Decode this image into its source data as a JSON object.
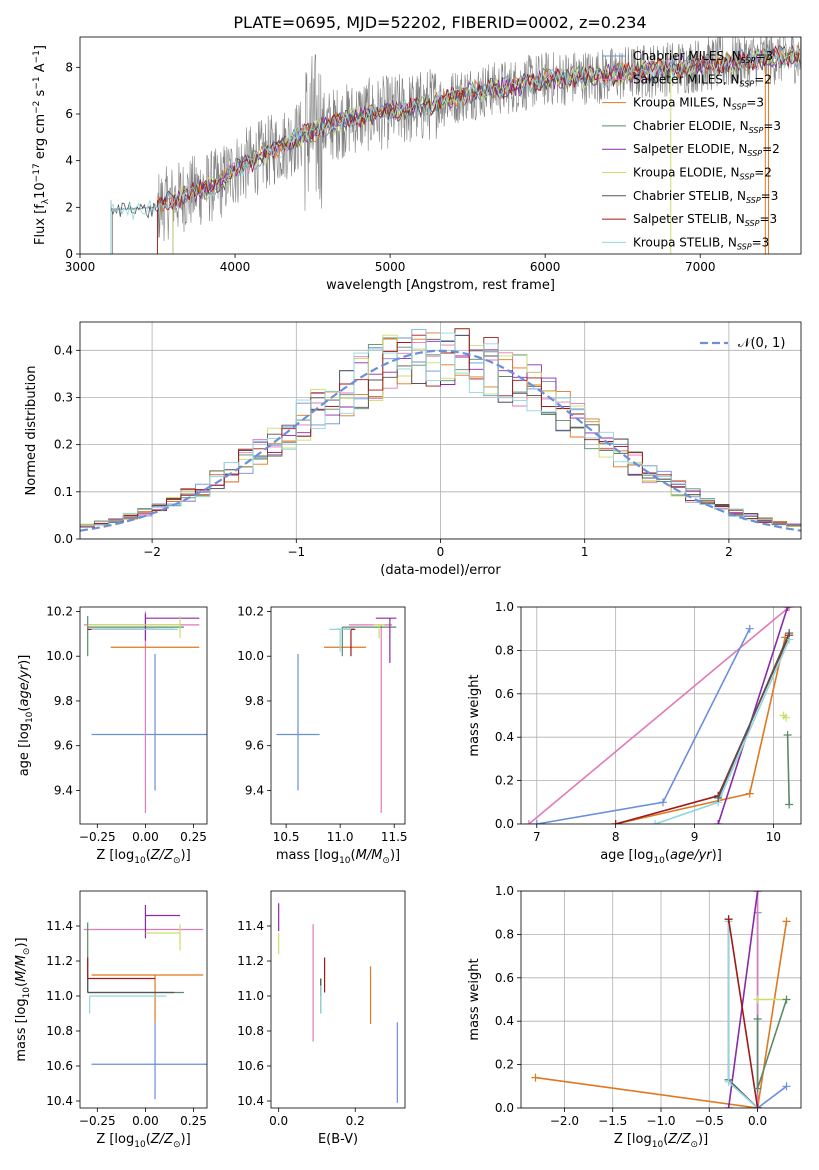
{
  "figure": {
    "suptitle": "PLATE=0695, MJD=52202, FIBERID=0002, z=0.234"
  },
  "colors": {
    "chabrier_miles": "#6b8fdb",
    "salpeter_miles": "#e07ab8",
    "kroupa_miles": "#e0781f",
    "chabrier_elodie": "#5a8a6a",
    "salpeter_elodie": "#8b2aa8",
    "kroupa_elodie": "#c8e06a",
    "chabrier_stelib": "#555555",
    "salpeter_stelib": "#a01818",
    "kroupa_stelib": "#8fd8e0",
    "data": "#808080",
    "normal": "#6b8fdb"
  },
  "chart_data": [
    {
      "id": "spectrum",
      "type": "line",
      "xlabel": "wavelength [Angstrom, rest frame]",
      "ylabel": "Flux [f",
      "xlim": [
        3000,
        7650
      ],
      "ylim": [
        0,
        9.3
      ],
      "xticks": [
        3000,
        4000,
        5000,
        6000,
        7000
      ],
      "yticks": [
        0,
        2,
        4,
        6,
        8
      ],
      "legend_position": "upper-right",
      "continuum": [
        [
          3200,
          1.9
        ],
        [
          3500,
          2.0
        ],
        [
          3700,
          2.6
        ],
        [
          3900,
          3.0
        ],
        [
          4000,
          3.6
        ],
        [
          4200,
          4.3
        ],
        [
          4400,
          5.0
        ],
        [
          4600,
          5.5
        ],
        [
          4800,
          5.9
        ],
        [
          5000,
          6.1
        ],
        [
          5200,
          6.3
        ],
        [
          5500,
          6.9
        ],
        [
          5800,
          7.2
        ],
        [
          6000,
          7.5
        ],
        [
          6300,
          7.6
        ],
        [
          6600,
          7.8
        ],
        [
          7000,
          8.1
        ],
        [
          7300,
          8.3
        ],
        [
          7600,
          8.5
        ]
      ],
      "series": [
        {
          "name": "Chabrier MILES, N",
          "sub": "SSP",
          "suffix": "=3",
          "color_key": "chabrier_miles"
        },
        {
          "name": "Salpeter MILES, N",
          "sub": "SSP",
          "suffix": "=2",
          "color_key": "salpeter_miles"
        },
        {
          "name": "Kroupa MILES, N",
          "sub": "SSP",
          "suffix": "=3",
          "color_key": "kroupa_miles"
        },
        {
          "name": "Chabrier ELODIE, N",
          "sub": "SSP",
          "suffix": "=3",
          "color_key": "chabrier_elodie"
        },
        {
          "name": "Salpeter ELODIE, N",
          "sub": "SSP",
          "suffix": "=2",
          "color_key": "salpeter_elodie"
        },
        {
          "name": "Kroupa ELODIE, N",
          "sub": "SSP",
          "suffix": "=2",
          "color_key": "kroupa_elodie"
        },
        {
          "name": "Chabrier STELIB, N",
          "sub": "SSP",
          "suffix": "=3",
          "color_key": "chabrier_stelib"
        },
        {
          "name": "Salpeter STELIB, N",
          "sub": "SSP",
          "suffix": "=3",
          "color_key": "salpeter_stelib"
        },
        {
          "name": "Kroupa STELIB, N",
          "sub": "SSP",
          "suffix": "=3",
          "color_key": "kroupa_stelib"
        }
      ]
    },
    {
      "id": "residuals",
      "type": "line",
      "xlabel": "(data-model)/error",
      "ylabel": "Normed distribution",
      "xlim": [
        -2.5,
        2.5
      ],
      "ylim": [
        0,
        0.46
      ],
      "xticks": [
        -2,
        -1,
        0,
        1,
        2
      ],
      "yticks": [
        0.0,
        0.1,
        0.2,
        0.3,
        0.4
      ],
      "grid": true,
      "legend": {
        "label": "𝒩(0, 1)",
        "position": "upper-right"
      },
      "bin_width": 0.1
    },
    {
      "id": "age_vs_Z",
      "type": "scatter",
      "xlabel": "Z [log",
      "ylabel": "age  [log",
      "xlim": [
        -0.34,
        0.32
      ],
      "ylim": [
        9.25,
        10.22
      ],
      "xticks": [
        -0.25,
        0.0,
        0.25
      ],
      "yticks": [
        9.4,
        9.6,
        9.8,
        10.0,
        10.2
      ],
      "points": [
        {
          "color_key": "chabrier_miles",
          "x": 0.05,
          "xerr": [
            0.33,
            0.27
          ],
          "y": 9.65,
          "yerr": [
            0.25,
            0.36
          ]
        },
        {
          "color_key": "salpeter_miles",
          "x": 0.0,
          "xerr": [
            0.32,
            0.28
          ],
          "y": 10.14,
          "yerr": [
            0.84,
            0.06
          ]
        },
        {
          "color_key": "kroupa_miles",
          "x": 0.05,
          "xerr": [
            0.23,
            0.23
          ],
          "y": 10.04,
          "yerr": [
            0.0,
            0.0
          ]
        },
        {
          "color_key": "chabrier_elodie",
          "x": -0.3,
          "xerr": [
            0.0,
            0.5
          ],
          "y": 10.13,
          "yerr": [
            0.13,
            0.05
          ]
        },
        {
          "color_key": "salpeter_elodie",
          "x": 0.0,
          "xerr": [
            0.0,
            0.28
          ],
          "y": 10.17,
          "yerr": [
            0.1,
            0.02
          ]
        },
        {
          "color_key": "kroupa_elodie",
          "x": 0.18,
          "xerr": [
            0.48,
            0.0
          ],
          "y": 10.14,
          "yerr": [
            0.06,
            0.04
          ]
        },
        {
          "color_key": "chabrier_stelib",
          "x": -0.05,
          "xerr": [
            0.23,
            0.2
          ],
          "y": 10.12,
          "yerr": [
            0.0,
            0.0
          ]
        },
        {
          "color_key": "salpeter_stelib",
          "x": -0.3,
          "xerr": [
            0.0,
            0.35
          ],
          "y": 10.12,
          "yerr": [
            0.0,
            0.0
          ]
        },
        {
          "color_key": "kroupa_stelib",
          "x": -0.28,
          "xerr": [
            0.0,
            0.45
          ],
          "y": 10.12,
          "yerr": [
            0.0,
            0.0
          ]
        }
      ]
    },
    {
      "id": "age_vs_mass",
      "type": "scatter",
      "xlabel": "mass [log",
      "ylabel": "",
      "xlim": [
        10.36,
        11.6
      ],
      "ylim": [
        9.25,
        10.22
      ],
      "xticks": [
        10.5,
        11.0,
        11.5
      ],
      "yticks": [
        9.4,
        9.6,
        9.8,
        10.0,
        10.2
      ],
      "points": [
        {
          "color_key": "chabrier_miles",
          "x": 10.61,
          "xerr": [
            0.2,
            0.2
          ],
          "y": 9.65,
          "yerr": [
            0.25,
            0.36
          ]
        },
        {
          "color_key": "salpeter_miles",
          "x": 11.38,
          "xerr": [
            0.3,
            0.1
          ],
          "y": 10.14,
          "yerr": [
            0.84,
            0.0
          ]
        },
        {
          "color_key": "kroupa_miles",
          "x": 11.12,
          "xerr": [
            0.27,
            0.12
          ],
          "y": 10.04,
          "yerr": [
            0.0,
            0.0
          ]
        },
        {
          "color_key": "chabrier_elodie",
          "x": 11.02,
          "xerr": [
            0.0,
            0.5
          ],
          "y": 10.13,
          "yerr": [
            0.13,
            0.0
          ]
        },
        {
          "color_key": "salpeter_elodie",
          "x": 11.46,
          "xerr": [
            0.13,
            0.06
          ],
          "y": 10.17,
          "yerr": [
            0.2,
            0.0
          ]
        },
        {
          "color_key": "kroupa_elodie",
          "x": 11.36,
          "xerr": [
            0.05,
            0.05
          ],
          "y": 10.14,
          "yerr": [
            0.06,
            0.0
          ]
        },
        {
          "color_key": "chabrier_stelib",
          "x": 11.05,
          "xerr": [
            0.08,
            0.08
          ],
          "y": 10.12,
          "yerr": [
            0.0,
            0.0
          ]
        },
        {
          "color_key": "salpeter_stelib",
          "x": 11.1,
          "xerr": [
            0.07,
            0.04
          ],
          "y": 10.12,
          "yerr": [
            0.12,
            0.0
          ]
        },
        {
          "color_key": "kroupa_stelib",
          "x": 11.0,
          "xerr": [
            0.1,
            0.1
          ],
          "y": 10.12,
          "yerr": [
            0.1,
            0.0
          ]
        }
      ]
    },
    {
      "id": "weight_vs_age",
      "type": "line",
      "xlabel": "age  [log",
      "ylabel": "mass weight",
      "xlim": [
        6.8,
        10.35
      ],
      "ylim": [
        0,
        1.0
      ],
      "xticks": [
        7,
        8,
        9,
        10
      ],
      "yticks": [
        0.0,
        0.2,
        0.4,
        0.6,
        0.8,
        1.0
      ],
      "grid": true,
      "series": [
        {
          "color_key": "salpeter_miles",
          "x": [
            6.9,
            10.2
          ],
          "y": [
            0.0,
            1.0
          ]
        },
        {
          "color_key": "chabrier_miles",
          "x": [
            7.0,
            8.6,
            9.7
          ],
          "y": [
            0.0,
            0.1,
            0.9
          ]
        },
        {
          "color_key": "kroupa_miles",
          "x": [
            8.0,
            9.7,
            10.15
          ],
          "y": [
            0.0,
            0.14,
            0.86
          ]
        },
        {
          "color_key": "salpeter_elodie",
          "x": [
            9.3,
            10.18
          ],
          "y": [
            0.0,
            1.0
          ]
        },
        {
          "color_key": "salpeter_stelib",
          "x": [
            8.0,
            9.3,
            10.2
          ],
          "y": [
            0.0,
            0.13,
            0.87
          ]
        },
        {
          "color_key": "kroupa_stelib",
          "x": [
            8.5,
            9.3,
            10.2
          ],
          "y": [
            0.0,
            0.1,
            0.85
          ]
        },
        {
          "color_key": "chabrier_stelib",
          "x": [
            9.3,
            10.2
          ],
          "y": [
            0.12,
            0.88
          ]
        },
        {
          "color_key": "kroupa_elodie",
          "x": [
            10.13,
            10.16
          ],
          "y": [
            0.5,
            0.49
          ]
        },
        {
          "color_key": "chabrier_elodie",
          "x": [
            10.18,
            10.2
          ],
          "y": [
            0.41,
            0.09
          ]
        }
      ]
    },
    {
      "id": "mass_vs_Z",
      "type": "scatter",
      "xlabel": "Z [log",
      "ylabel": "mass [log",
      "xlim": [
        -0.34,
        0.32
      ],
      "ylim": [
        10.36,
        11.6
      ],
      "xticks": [
        -0.25,
        0.0,
        0.25
      ],
      "yticks": [
        10.4,
        10.6,
        10.8,
        11.0,
        11.2,
        11.4
      ],
      "points": [
        {
          "color_key": "chabrier_miles",
          "x": 0.05,
          "xerr": [
            0.33,
            0.27
          ],
          "y": 10.61,
          "yerr": [
            0.2,
            0.24
          ]
        },
        {
          "color_key": "salpeter_miles",
          "x": 0.0,
          "xerr": [
            0.32,
            0.3
          ],
          "y": 11.38,
          "yerr": [
            0.0,
            0.0
          ]
        },
        {
          "color_key": "kroupa_miles",
          "x": 0.05,
          "xerr": [
            0.33,
            0.25
          ],
          "y": 11.12,
          "yerr": [
            0.27,
            0.0
          ]
        },
        {
          "color_key": "chabrier_elodie",
          "x": -0.3,
          "xerr": [
            0.0,
            0.5
          ],
          "y": 11.02,
          "yerr": [
            0.0,
            0.4
          ]
        },
        {
          "color_key": "salpeter_elodie",
          "x": 0.0,
          "xerr": [
            0.0,
            0.18
          ],
          "y": 11.46,
          "yerr": [
            0.13,
            0.06
          ]
        },
        {
          "color_key": "kroupa_elodie",
          "x": 0.18,
          "xerr": [
            0.18,
            0.0
          ],
          "y": 11.36,
          "yerr": [
            0.1,
            0.05
          ]
        },
        {
          "color_key": "chabrier_stelib",
          "x": -0.3,
          "xerr": [
            0.0,
            0.45
          ],
          "y": 11.02,
          "yerr": [
            0.0,
            0.08
          ]
        },
        {
          "color_key": "salpeter_stelib",
          "x": -0.3,
          "xerr": [
            0.0,
            0.35
          ],
          "y": 11.1,
          "yerr": [
            0.0,
            0.12
          ]
        },
        {
          "color_key": "kroupa_stelib",
          "x": -0.29,
          "xerr": [
            0.0,
            0.4
          ],
          "y": 11.0,
          "yerr": [
            0.1,
            0.0
          ]
        }
      ]
    },
    {
      "id": "mass_vs_ebv",
      "type": "scatter",
      "xlabel": "E(B-V)",
      "ylabel": "",
      "xlim": [
        -0.02,
        0.33
      ],
      "ylim": [
        10.36,
        11.6
      ],
      "xticks": [
        0.0,
        0.2
      ],
      "yticks": [
        10.4,
        10.6,
        10.8,
        11.0,
        11.2,
        11.4
      ],
      "points": [
        {
          "color_key": "chabrier_miles",
          "x": 0.31,
          "y": 10.61,
          "yerr": [
            0.22,
            0.24
          ]
        },
        {
          "color_key": "salpeter_miles",
          "x": 0.09,
          "y": 11.08,
          "yerr": [
            0.34,
            0.33
          ]
        },
        {
          "color_key": "kroupa_miles",
          "x": 0.24,
          "y": 11.01,
          "yerr": [
            0.17,
            0.16
          ]
        },
        {
          "color_key": "chabrier_elodie",
          "x": 0.11,
          "y": 11.0,
          "yerr": [
            0.1,
            0.1
          ]
        },
        {
          "color_key": "salpeter_elodie",
          "x": 0.0,
          "y": 11.45,
          "yerr": [
            0.08,
            0.08
          ]
        },
        {
          "color_key": "kroupa_elodie",
          "x": 0.0,
          "y": 11.3,
          "yerr": [
            0.06,
            0.06
          ]
        },
        {
          "color_key": "chabrier_stelib",
          "x": 0.11,
          "y": 11.05,
          "yerr": [
            0.05,
            0.05
          ]
        },
        {
          "color_key": "salpeter_stelib",
          "x": 0.12,
          "y": 11.12,
          "yerr": [
            0.1,
            0.1
          ]
        },
        {
          "color_key": "kroupa_stelib",
          "x": 0.11,
          "y": 10.98,
          "yerr": [
            0.08,
            0.08
          ]
        }
      ]
    },
    {
      "id": "weight_vs_Z",
      "type": "line",
      "xlabel": "Z [log",
      "ylabel": "mass weight",
      "xlim": [
        -2.45,
        0.45
      ],
      "ylim": [
        0,
        1.0
      ],
      "xticks": [
        -2.0,
        -1.5,
        -1.0,
        -0.5,
        0.0
      ],
      "yticks": [
        0.0,
        0.2,
        0.4,
        0.6,
        0.8,
        1.0
      ],
      "grid": true,
      "series": [
        {
          "color_key": "kroupa_miles",
          "x": [
            -2.3,
            0.0,
            0.3
          ],
          "y": [
            0.14,
            0.0,
            0.86
          ]
        },
        {
          "color_key": "chabrier_miles",
          "x": [
            0.0,
            0.0,
            0.3
          ],
          "y": [
            0.9,
            0.0,
            0.1
          ]
        },
        {
          "color_key": "salpeter_miles",
          "x": [
            0.0,
            0.0
          ],
          "y": [
            1.0,
            0.0
          ]
        },
        {
          "color_key": "salpeter_elodie",
          "x": [
            -0.3,
            0.0
          ],
          "y": [
            0.0,
            1.0
          ]
        },
        {
          "color_key": "chabrier_stelib",
          "x": [
            -0.3,
            -0.3,
            0.0
          ],
          "y": [
            0.87,
            0.13,
            0.0
          ]
        },
        {
          "color_key": "kroupa_stelib",
          "x": [
            -0.3,
            -0.3,
            0.0
          ],
          "y": [
            0.86,
            0.12,
            0.0
          ]
        },
        {
          "color_key": "salpeter_stelib",
          "x": [
            -0.3,
            0.0
          ],
          "y": [
            0.87,
            0.0
          ]
        },
        {
          "color_key": "kroupa_elodie",
          "x": [
            0.0,
            0.3
          ],
          "y": [
            0.5,
            0.5
          ]
        },
        {
          "color_key": "chabrier_elodie",
          "x": [
            0.0,
            0.0,
            0.3
          ],
          "y": [
            0.41,
            0.09,
            0.5
          ]
        }
      ]
    }
  ]
}
